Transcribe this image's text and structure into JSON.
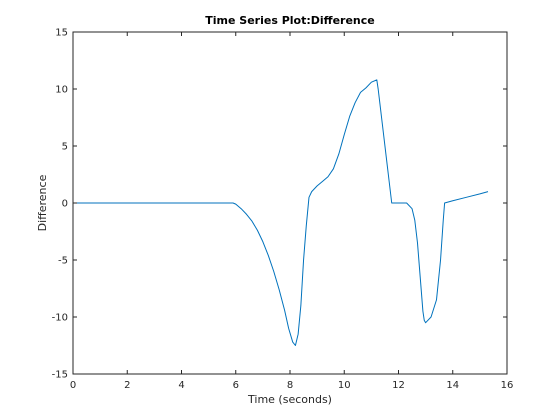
{
  "chart_data": {
    "type": "line",
    "title": "Time Series Plot:Difference",
    "xlabel": "Time (seconds)",
    "ylabel": "Difference",
    "xlim": [
      0,
      16
    ],
    "ylim": [
      -15,
      15
    ],
    "xticks": [
      0,
      2,
      4,
      6,
      8,
      10,
      12,
      14,
      16
    ],
    "xtick_labels": [
      "0",
      "2",
      "4",
      "6",
      "8",
      "10",
      "12",
      "14",
      "16"
    ],
    "yticks": [
      -15,
      -10,
      -5,
      0,
      5,
      10,
      15
    ],
    "ytick_labels": [
      "-15",
      "-10",
      "-5",
      "0",
      "5",
      "10",
      "15"
    ],
    "grid": false,
    "colors": {
      "line": "#0072BD",
      "axes": "#262626"
    },
    "series": [
      {
        "x": [
          0,
          1,
          2,
          3,
          4,
          5,
          5.9,
          6.0,
          6.2,
          6.4,
          6.6,
          6.8,
          7.0,
          7.2,
          7.4,
          7.6,
          7.8,
          7.95,
          8.1,
          8.2,
          8.3,
          8.4,
          8.5,
          8.6,
          8.7,
          8.8,
          9.0,
          9.2,
          9.4,
          9.6,
          9.8,
          10.0,
          10.2,
          10.4,
          10.6,
          10.8,
          11.0,
          11.2,
          11.25,
          11.4,
          11.6,
          11.75,
          12.0,
          12.3,
          12.5,
          12.6,
          12.7,
          12.8,
          12.9,
          12.95,
          13.0,
          13.2,
          13.4,
          13.55,
          13.65,
          13.7,
          14.0,
          14.5,
          15.0,
          15.3
        ],
        "y": [
          0,
          0,
          0,
          0,
          0,
          0,
          0,
          -0.1,
          -0.5,
          -1.0,
          -1.6,
          -2.4,
          -3.4,
          -4.6,
          -6.0,
          -7.6,
          -9.4,
          -11.0,
          -12.2,
          -12.5,
          -11.5,
          -9.0,
          -5.0,
          -2.0,
          0.5,
          1.0,
          1.5,
          1.9,
          2.3,
          3.0,
          4.3,
          6.0,
          7.6,
          8.8,
          9.7,
          10.1,
          10.6,
          10.8,
          10.0,
          7.0,
          3.0,
          0,
          0,
          0,
          -0.5,
          -1.5,
          -3.5,
          -6.5,
          -9.5,
          -10.3,
          -10.5,
          -10.0,
          -8.5,
          -5.0,
          -1.5,
          0,
          0.2,
          0.5,
          0.8,
          1.0
        ]
      }
    ]
  }
}
